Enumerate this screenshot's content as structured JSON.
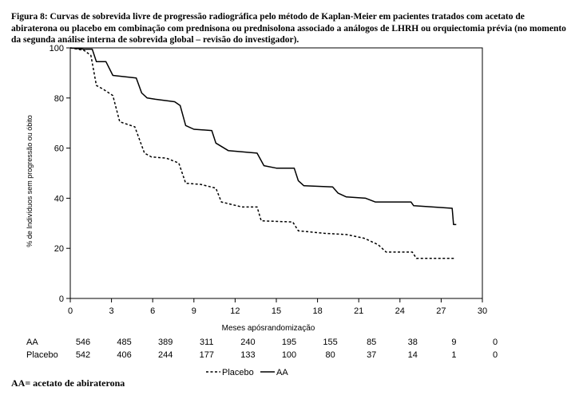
{
  "caption": "Figura 8: Curvas de sobrevida livre de progressão radiográfica pelo método de Kaplan-Meier em pacientes tratados com acetato de abiraterona ou placebo em combinação com prednisona ou prednisolona associado a análogos de LHRH ou orquiectomia prévia (no momento da segunda análise interna de sobrevida global – revisão do investigador).",
  "footnote": "AA= acetato de abiraterona",
  "chart_data": {
    "type": "line",
    "step": true,
    "xlabel": "Meses apósrandomização",
    "ylabel": "% de Indivíduos sem progressão ou óbito",
    "xlim": [
      0,
      30
    ],
    "ylim": [
      0,
      100
    ],
    "xticks": [
      "0",
      "3",
      "6",
      "9",
      "12",
      "15",
      "18",
      "21",
      "24",
      "27",
      "30"
    ],
    "yticks": [
      "0",
      "20",
      "40",
      "60",
      "80",
      "100"
    ],
    "grid": false,
    "legend_position": "bottom-center",
    "legend": [
      {
        "name": "Placebo",
        "style": "dashed"
      },
      {
        "name": "AA",
        "style": "solid"
      }
    ],
    "series": [
      {
        "name": "AA",
        "style": "solid",
        "points": [
          [
            0,
            100
          ],
          [
            1.0,
            99.5
          ],
          [
            1.6,
            99.5
          ],
          [
            1.9,
            94.5
          ],
          [
            2.6,
            94.5
          ],
          [
            3.1,
            89
          ],
          [
            4.8,
            88
          ],
          [
            5.2,
            82
          ],
          [
            5.6,
            80
          ],
          [
            6.2,
            79.5
          ],
          [
            7.6,
            78.5
          ],
          [
            8.0,
            77
          ],
          [
            8.4,
            69
          ],
          [
            9.0,
            67.5
          ],
          [
            10.3,
            67
          ],
          [
            10.6,
            62
          ],
          [
            11.5,
            59
          ],
          [
            13.6,
            58
          ],
          [
            14.1,
            53
          ],
          [
            15.0,
            52
          ],
          [
            16.3,
            52
          ],
          [
            16.6,
            47
          ],
          [
            17.0,
            45
          ],
          [
            19.1,
            44.5
          ],
          [
            19.5,
            42
          ],
          [
            20.1,
            40.5
          ],
          [
            21.5,
            40
          ],
          [
            22.2,
            38.5
          ],
          [
            24.8,
            38.5
          ],
          [
            25.0,
            37
          ],
          [
            27.8,
            36
          ],
          [
            27.9,
            29.5
          ],
          [
            28.1,
            29.5
          ]
        ]
      },
      {
        "name": "Placebo",
        "style": "dashed",
        "points": [
          [
            0,
            100
          ],
          [
            1.0,
            99
          ],
          [
            1.5,
            97
          ],
          [
            1.9,
            85
          ],
          [
            2.4,
            83.5
          ],
          [
            3.1,
            81
          ],
          [
            3.6,
            70.5
          ],
          [
            4.7,
            68.5
          ],
          [
            5.4,
            58
          ],
          [
            5.9,
            56.5
          ],
          [
            7.0,
            56
          ],
          [
            7.9,
            54
          ],
          [
            8.4,
            46
          ],
          [
            9.5,
            45.5
          ],
          [
            10.6,
            44
          ],
          [
            11.0,
            38.5
          ],
          [
            12.5,
            36.5
          ],
          [
            13.6,
            36.5
          ],
          [
            13.9,
            31
          ],
          [
            16.2,
            30.5
          ],
          [
            16.6,
            27
          ],
          [
            18.5,
            26
          ],
          [
            20.1,
            25.5
          ],
          [
            21.4,
            24
          ],
          [
            22.4,
            21.5
          ],
          [
            23.0,
            18.5
          ],
          [
            24.9,
            18.5
          ],
          [
            25.2,
            16
          ],
          [
            28.0,
            16
          ]
        ]
      }
    ],
    "risk_table": {
      "time_points": [
        "0",
        "3",
        "6",
        "9",
        "12",
        "15",
        "18",
        "21",
        "24",
        "27",
        "30"
      ],
      "rows": [
        {
          "label": "AA",
          "values": [
            "546",
            "485",
            "389",
            "311",
            "240",
            "195",
            "155",
            "85",
            "38",
            "9",
            "0"
          ]
        },
        {
          "label": "Placebo",
          "values": [
            "542",
            "406",
            "244",
            "177",
            "133",
            "100",
            "80",
            "37",
            "14",
            "1",
            "0"
          ]
        }
      ]
    }
  }
}
